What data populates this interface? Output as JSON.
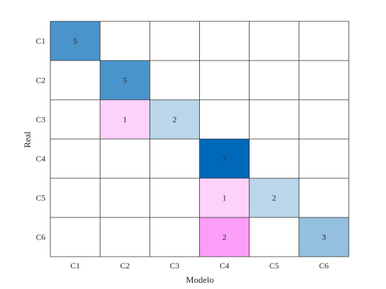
{
  "chart_data": {
    "type": "heatmap",
    "title": "",
    "xlabel": "Modelo",
    "ylabel": "Real",
    "x_categories": [
      "C1",
      "C2",
      "C3",
      "C4",
      "C5",
      "C6"
    ],
    "y_categories": [
      "C1",
      "C2",
      "C3",
      "C4",
      "C5",
      "C6"
    ],
    "values": [
      [
        5,
        null,
        null,
        null,
        null,
        null
      ],
      [
        null,
        5,
        null,
        null,
        null,
        null
      ],
      [
        null,
        1,
        2,
        null,
        null,
        null
      ],
      [
        null,
        null,
        null,
        7,
        null,
        null
      ],
      [
        null,
        null,
        null,
        1,
        2,
        null
      ],
      [
        null,
        null,
        null,
        2,
        null,
        3
      ]
    ],
    "colors": {
      "correct_scale": [
        "#b9d6ea",
        "#0068b8"
      ],
      "error_scale": [
        "#fcd2fb",
        "#fb9ef8"
      ],
      "grid": "#262626",
      "background": "#ffffff",
      "text": "#262626"
    }
  }
}
